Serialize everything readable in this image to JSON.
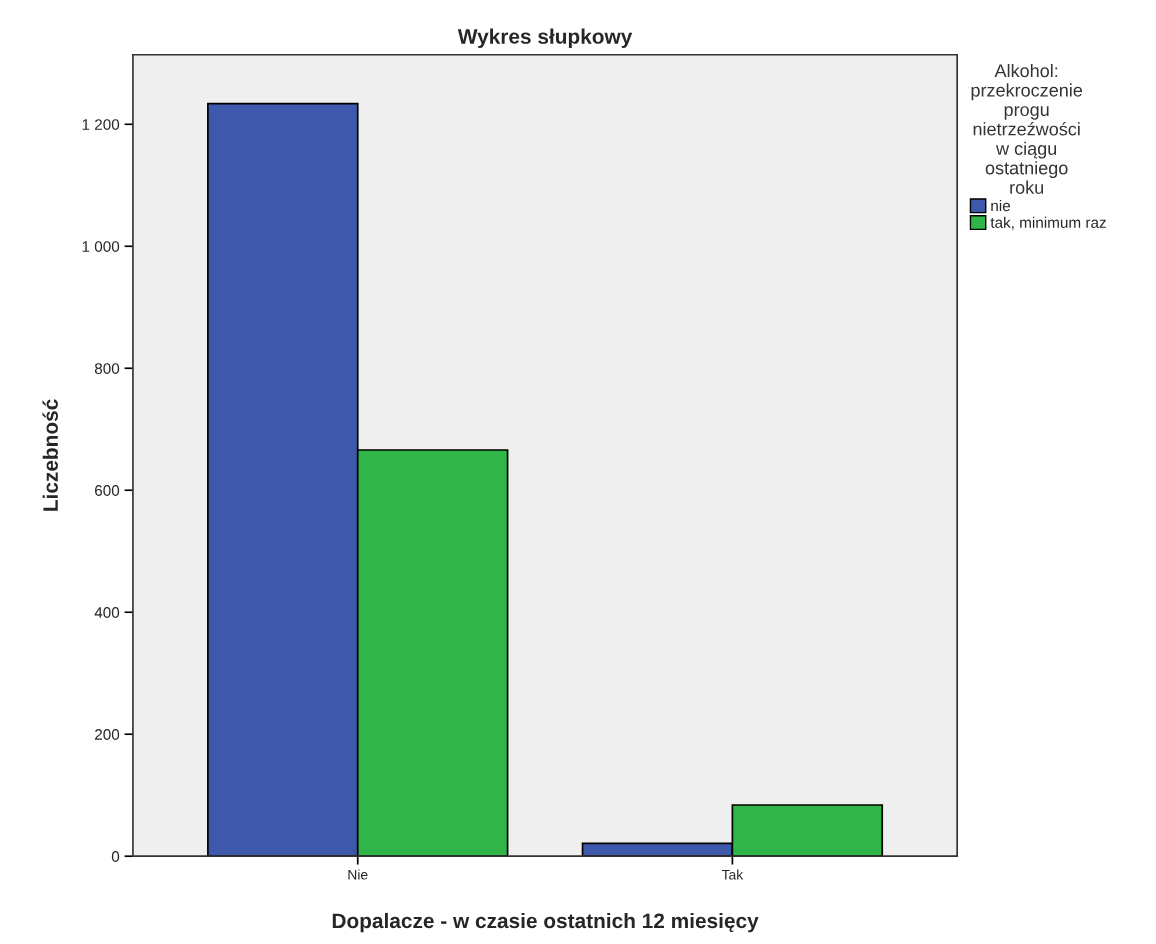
{
  "chart_data": {
    "type": "bar",
    "title": "Wykres słupkowy",
    "xlabel": "Dopalacze - w czasie ostatnich 12 miesięcy",
    "ylabel": "Liczebność",
    "legend_title": "Alkohol:\nprzekroczenie\nprogu\nnietrzeźwości\nw ciągu\nostatniego\nroku",
    "categories": [
      "Nie",
      "Tak"
    ],
    "series": [
      {
        "name": "nie",
        "color": "#3e58ab",
        "values": [
          1234,
          21
        ]
      },
      {
        "name": "tak, minimum raz",
        "color": "#2fb548",
        "values": [
          666,
          84
        ]
      }
    ],
    "ylim": [
      0,
      1314
    ],
    "yticks": [
      0,
      200,
      400,
      600,
      800,
      {
        "value": 1000,
        "label": "1 000"
      },
      {
        "value": 1200,
        "label": "1 200"
      }
    ],
    "grid": false,
    "legend": "right"
  }
}
